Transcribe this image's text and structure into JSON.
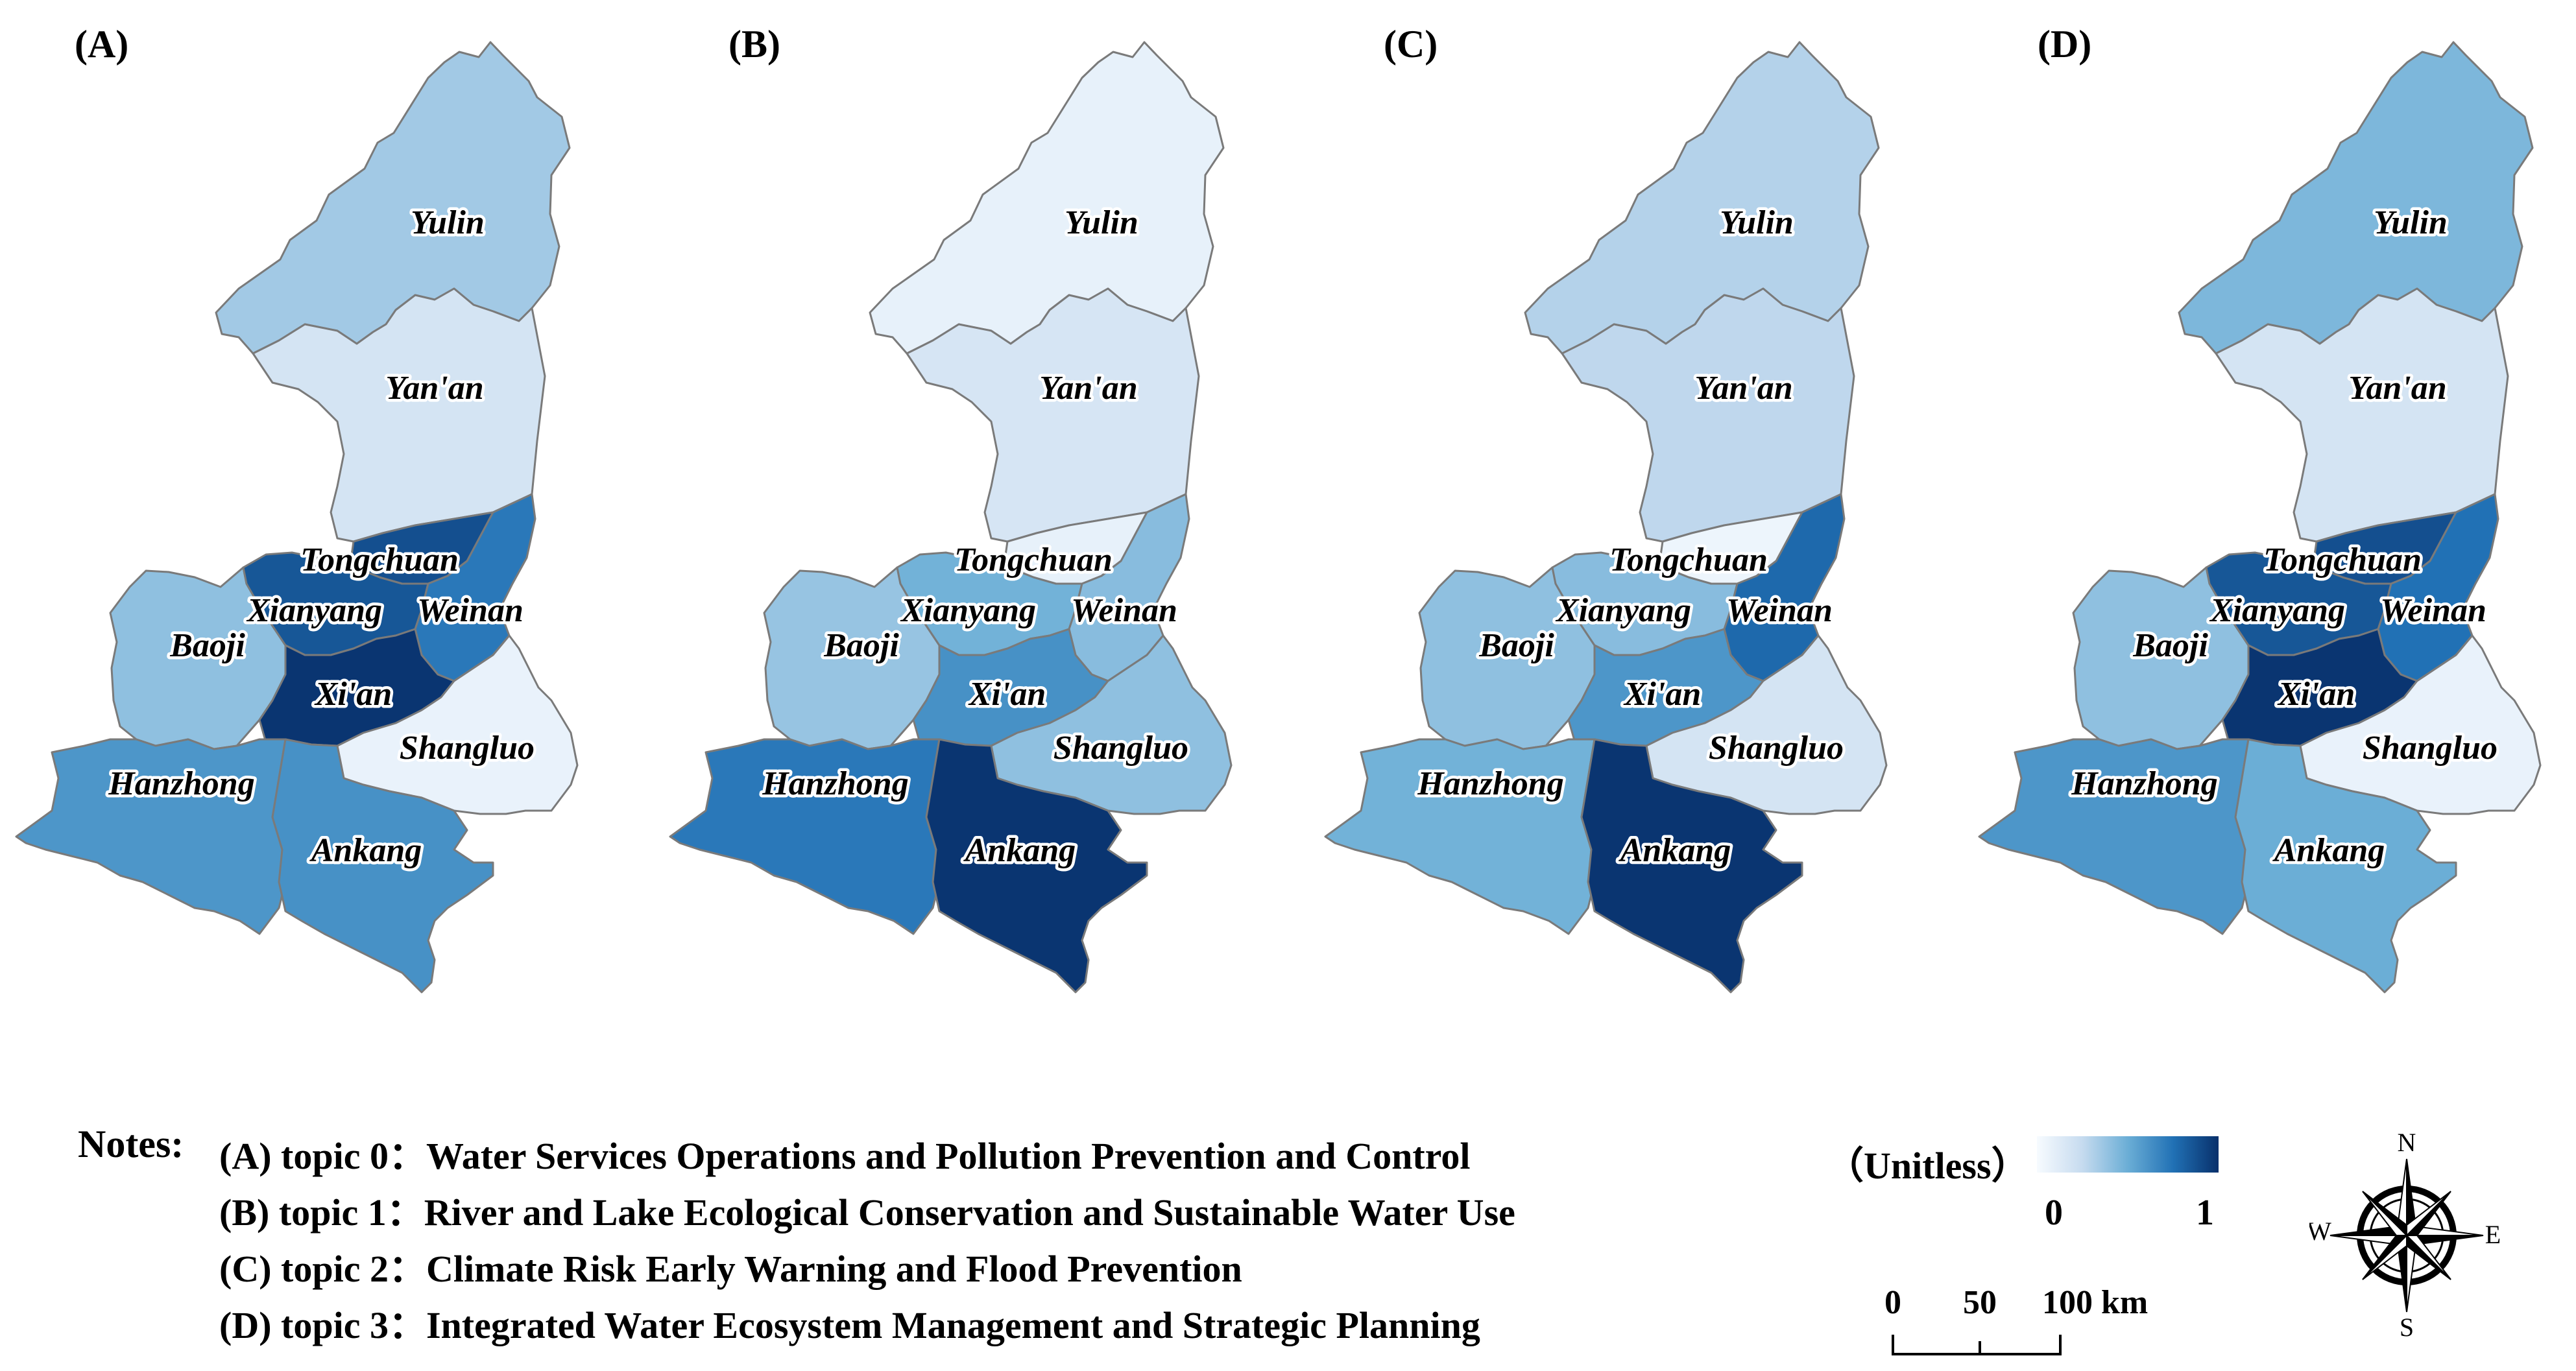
{
  "panels": [
    {
      "letter": "(A)",
      "values": {
        "yulin": 0.35,
        "yanan": 0.18,
        "tongchuan": 0.88,
        "xianyang": 0.85,
        "weinan": 0.72,
        "baoji": 0.4,
        "xian": 0.98,
        "shangluo": 0.07,
        "hanzhong": 0.6,
        "ankang": 0.62
      }
    },
    {
      "letter": "(B)",
      "values": {
        "yulin": 0.08,
        "yanan": 0.17,
        "tongchuan": 0.08,
        "xianyang": 0.48,
        "weinan": 0.42,
        "baoji": 0.38,
        "xian": 0.62,
        "shangluo": 0.4,
        "hanzhong": 0.72,
        "ankang": 0.98
      }
    },
    {
      "letter": "(C)",
      "values": {
        "yulin": 0.3,
        "yanan": 0.27,
        "tongchuan": 0.05,
        "xianyang": 0.42,
        "weinan": 0.78,
        "baoji": 0.4,
        "xian": 0.6,
        "shangluo": 0.18,
        "hanzhong": 0.48,
        "ankang": 0.98
      }
    },
    {
      "letter": "(D)",
      "values": {
        "yulin": 0.45,
        "yanan": 0.18,
        "tongchuan": 0.88,
        "xianyang": 0.85,
        "weinan": 0.75,
        "baoji": 0.4,
        "xian": 0.98,
        "shangluo": 0.07,
        "hanzhong": 0.6,
        "ankang": 0.5
      }
    }
  ],
  "labels": {
    "yulin": "Yulin",
    "yanan": "Yan'an",
    "tongchuan": "Tongchuan",
    "xianyang": "Xianyang",
    "weinan": "Weinan",
    "baoji": "Baoji",
    "xian": "Xi'an",
    "shangluo": "Shangluo",
    "hanzhong": "Hanzhong",
    "ankang": "Ankang"
  },
  "notes": {
    "title": "Notes:",
    "lines": [
      "(A) topic 0：Water Services Operations and Pollution Prevention and Control",
      "(B) topic 1：River and Lake Ecological Conservation and Sustainable Water Use",
      "(C) topic 2：Climate Risk Early Warning and Flood Prevention",
      "(D) topic 3：Integrated Water Ecosystem Management and Strategic Planning"
    ]
  },
  "legend": {
    "title": "（Unitless）",
    "min_label": "0",
    "max_label": "1",
    "colors": [
      "#f7fbff",
      "#c6dbef",
      "#6baed6",
      "#2171b5",
      "#08306b"
    ]
  },
  "scale": {
    "ticks": [
      "0",
      "50",
      "100 km"
    ]
  },
  "compass": {
    "n": "N",
    "s": "S",
    "e": "E",
    "w": "W"
  },
  "colors": {
    "border": "#7a7a7a"
  }
}
